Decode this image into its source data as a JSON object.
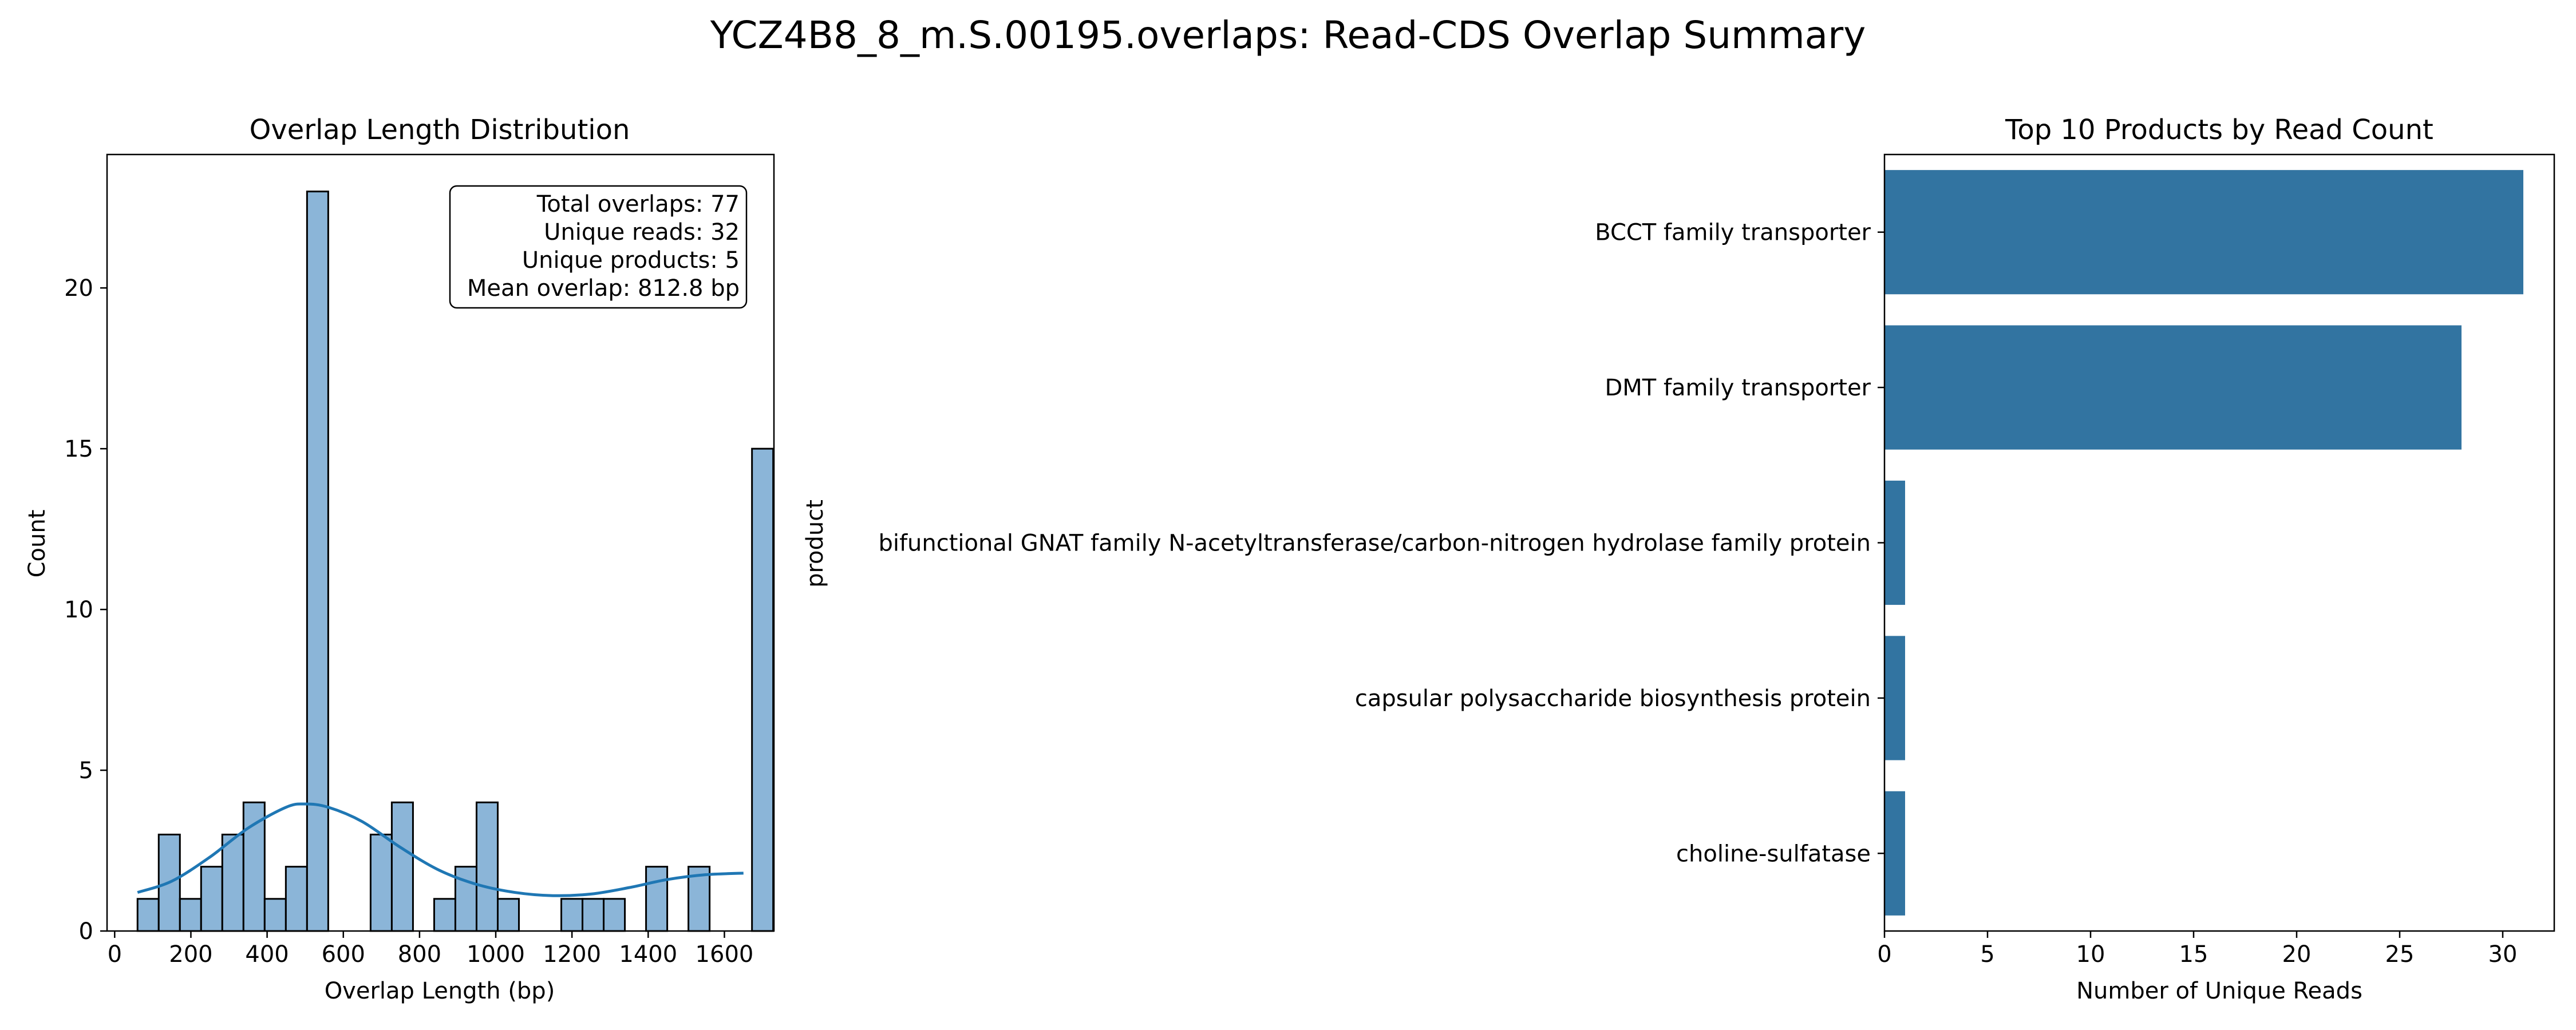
{
  "suptitle": "YCZ4B8_8_m.S.00195.overlaps: Read-CDS Overlap Summary",
  "chart_data": [
    {
      "type": "histogram",
      "title": "Overlap Length Distribution",
      "xlabel": "Overlap Length (bp)",
      "ylabel": "Count",
      "xlim": [
        -20,
        1730
      ],
      "ylim": [
        0,
        24.15
      ],
      "xticks": [
        0,
        200,
        400,
        600,
        800,
        1000,
        1200,
        1400,
        1600
      ],
      "yticks": [
        0,
        5,
        10,
        15,
        20
      ],
      "bar_color": "#8bb5d8",
      "edge_color": "#000000",
      "kde_color": "#1f77b4",
      "bins": [
        {
          "start": 60,
          "end": 115.6,
          "count": 1
        },
        {
          "start": 115.6,
          "end": 171.2,
          "count": 3
        },
        {
          "start": 171.2,
          "end": 226.8,
          "count": 1
        },
        {
          "start": 226.8,
          "end": 282.4,
          "count": 2
        },
        {
          "start": 282.4,
          "end": 338,
          "count": 3
        },
        {
          "start": 338,
          "end": 393.6,
          "count": 4
        },
        {
          "start": 393.6,
          "end": 449.2,
          "count": 1
        },
        {
          "start": 449.2,
          "end": 504.8,
          "count": 2
        },
        {
          "start": 504.8,
          "end": 560.4,
          "count": 23
        },
        {
          "start": 560.4,
          "end": 616,
          "count": 0
        },
        {
          "start": 616,
          "end": 671.6,
          "count": 0
        },
        {
          "start": 671.6,
          "end": 727.2,
          "count": 3
        },
        {
          "start": 727.2,
          "end": 782.8,
          "count": 4
        },
        {
          "start": 782.8,
          "end": 838.4,
          "count": 0
        },
        {
          "start": 838.4,
          "end": 894,
          "count": 1
        },
        {
          "start": 894,
          "end": 949.6,
          "count": 2
        },
        {
          "start": 949.6,
          "end": 1005.2,
          "count": 4
        },
        {
          "start": 1005.2,
          "end": 1060.8,
          "count": 1
        },
        {
          "start": 1060.8,
          "end": 1116.4,
          "count": 0
        },
        {
          "start": 1116.4,
          "end": 1172,
          "count": 0
        },
        {
          "start": 1172,
          "end": 1227.6,
          "count": 1
        },
        {
          "start": 1227.6,
          "end": 1283.2,
          "count": 1
        },
        {
          "start": 1283.2,
          "end": 1338.8,
          "count": 1
        },
        {
          "start": 1338.8,
          "end": 1394.4,
          "count": 0
        },
        {
          "start": 1394.4,
          "end": 1450,
          "count": 2
        },
        {
          "start": 1450,
          "end": 1505.6,
          "count": 0
        },
        {
          "start": 1505.6,
          "end": 1561.2,
          "count": 2
        },
        {
          "start": 1561.2,
          "end": 1616.8,
          "count": 0
        },
        {
          "start": 1616.8,
          "end": 1672.4,
          "count": 0
        },
        {
          "start": 1672.4,
          "end": 1728,
          "count": 15
        }
      ],
      "kde": {
        "x": [
          60,
          150,
          250,
          350,
          450,
          500,
          560,
          650,
          750,
          850,
          950,
          1050,
          1150,
          1250,
          1350,
          1450,
          1550,
          1650
        ],
        "y": [
          1.2,
          1.55,
          2.3,
          3.2,
          3.85,
          3.95,
          3.85,
          3.4,
          2.6,
          1.9,
          1.45,
          1.2,
          1.1,
          1.15,
          1.35,
          1.6,
          1.75,
          1.8
        ]
      },
      "stats": [
        "Total overlaps: 77",
        "Unique reads: 32",
        "Unique products: 5",
        "Mean overlap: 812.8 bp"
      ]
    },
    {
      "type": "bar",
      "orientation": "horizontal",
      "title": "Top 10 Products by Read Count",
      "xlabel": "Number of Unique Reads",
      "ylabel": "product",
      "xlim": [
        0,
        32.5
      ],
      "xticks": [
        0,
        5,
        10,
        15,
        20,
        25,
        30
      ],
      "bar_color": "#3274a1",
      "categories": [
        "BCCT family transporter",
        "DMT family transporter",
        "bifunctional GNAT family N-acetyltransferase/carbon-nitrogen hydrolase family protein",
        "capsular polysaccharide biosynthesis protein",
        "choline-sulfatase"
      ],
      "values": [
        31,
        28,
        1,
        1,
        1
      ]
    }
  ]
}
